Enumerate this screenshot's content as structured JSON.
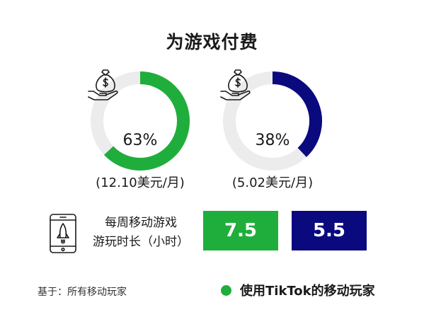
{
  "title": "为游戏付费",
  "colors": {
    "tiktok": "#1fae3c",
    "all": "#0a0a7e",
    "track": "#ececec"
  },
  "chart_data": [
    {
      "type": "pie",
      "variant": "donut",
      "value": 63,
      "label": "63%",
      "sublabel": "(12.10美元/月)",
      "color": "#1fae3c",
      "icon": "money-bag-hand-icon"
    },
    {
      "type": "pie",
      "variant": "donut",
      "value": 38,
      "label": "38%",
      "sublabel": "(5.02美元/月)",
      "color": "#0a0a7e",
      "icon": "money-bag-hand-icon"
    }
  ],
  "metric": {
    "label_line1": "每周移动游戏",
    "label_line2": "游玩时长（小时）",
    "icon": "phone-rocket-icon",
    "values": [
      "7.5",
      "5.5"
    ]
  },
  "footnote": "基于：所有移动玩家",
  "legend": {
    "label": "使用TikTok的移动玩家"
  }
}
